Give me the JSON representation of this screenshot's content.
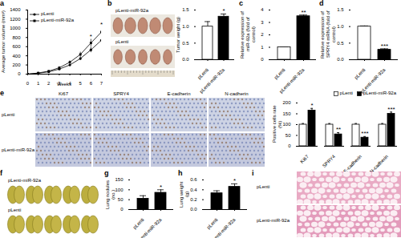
{
  "chart_data": [
    {
      "title": "a",
      "type": "line",
      "x_label": "Weeks",
      "y_label": "Average tumor volume (mm³)",
      "x": [
        0,
        1,
        2,
        3,
        4,
        5,
        6,
        7
      ],
      "xlim": [
        0,
        7
      ],
      "xticks": [
        0,
        1,
        2,
        3,
        4,
        5,
        6,
        7
      ],
      "ylim": [
        0,
        1400
      ],
      "yticks": [
        0,
        200,
        400,
        600,
        800,
        1000,
        1200,
        1400
      ],
      "legend": "top-left",
      "series": [
        {
          "name": "pLenti",
          "color": "#000000",
          "marker": "circle",
          "values": [
            0,
            20,
            50,
            110,
            200,
            340,
            530,
            740
          ],
          "errors": [
            0,
            5,
            10,
            15,
            25,
            40,
            60,
            80
          ]
        },
        {
          "name": "pLenti-miR-92a",
          "color": "#000000",
          "marker": "square",
          "values": [
            0,
            25,
            65,
            140,
            260,
            430,
            680,
            920
          ],
          "errors": [
            0,
            5,
            12,
            20,
            30,
            50,
            80,
            110
          ]
        }
      ],
      "annotations": [
        {
          "x": 6,
          "text": "*"
        },
        {
          "x": 7,
          "text": "*"
        }
      ]
    },
    {
      "type": "bar",
      "y_label": "Tumor weight (g)",
      "categories": [
        "pLenti",
        "pLenti-miR-92a"
      ],
      "values": [
        1.0,
        1.3
      ],
      "errors": [
        0.15,
        0.08
      ],
      "colors": [
        "#ffffff",
        "#000000"
      ],
      "ylim": [
        0,
        1.5
      ],
      "yticks": [
        {
          "value": 0,
          "label": "0.0"
        },
        0.5,
        {
          "value": 1,
          "label": "1.0"
        },
        1.5
      ],
      "annotations": [
        {
          "category": "pLenti-miR-92a",
          "text": "*"
        }
      ]
    },
    {
      "title": "c",
      "type": "bar",
      "y_label": "Relative expression of miR-92a (fold of control)",
      "categories": [
        "pLenti",
        "pLenti-miR-92a"
      ],
      "values": [
        1.0,
        3.5
      ],
      "errors": [
        0.03,
        0.1
      ],
      "colors": [
        "#ffffff",
        "#000000"
      ],
      "ylim": [
        0,
        4
      ],
      "yticks": [
        0,
        1,
        2,
        3,
        4
      ],
      "annotations": [
        {
          "category": "pLenti-miR-92a",
          "text": "**"
        }
      ]
    },
    {
      "title": "d",
      "type": "bar",
      "y_label": "Relative expression of SPRY4 mRNA (fold of control)",
      "categories": [
        "pLenti",
        "pLenti-miR-92a"
      ],
      "values": [
        1.0,
        0.3
      ],
      "errors": [
        0.02,
        0.03
      ],
      "colors": [
        "#ffffff",
        "#000000"
      ],
      "ylim": [
        0,
        1.5
      ],
      "yticks": [
        {
          "value": 0,
          "label": "0.0"
        },
        0.5,
        {
          "value": 1,
          "label": "1.0"
        },
        1.5
      ],
      "annotations": [
        {
          "category": "pLenti-miR-92a",
          "text": "***"
        }
      ]
    },
    {
      "type": "bar",
      "y_label": "Positive cells rate (%)",
      "categories": [
        "Ki67",
        "SPRY4",
        "E-cadherin",
        "N-cadherin"
      ],
      "legend": "top-right",
      "series": [
        {
          "name": "pLenti",
          "color": "#ffffff",
          "values": [
            100,
            100,
            100,
            100
          ],
          "errors": [
            5,
            5,
            5,
            5
          ]
        },
        {
          "name": "pLenti-miR-92a",
          "color": "#000000",
          "values": [
            165,
            55,
            40,
            150
          ],
          "errors": [
            10,
            8,
            5,
            8
          ]
        }
      ],
      "ylim": [
        0,
        200
      ],
      "yticks": [
        0,
        50,
        100,
        150,
        200
      ],
      "annotations": [
        {
          "category": "Ki67",
          "series": "pLenti-miR-92a",
          "text": "*"
        },
        {
          "category": "SPRY4",
          "series": "pLenti-miR-92a",
          "text": "**"
        },
        {
          "category": "E-cadherin",
          "series": "pLenti-miR-92a",
          "text": "***"
        },
        {
          "category": "N-cadherin",
          "series": "pLenti-miR-92a",
          "text": "***"
        }
      ]
    },
    {
      "title": "g",
      "type": "bar",
      "y_label": "Lung nodules (no.)",
      "categories": [
        "pLenti",
        "pLenti-miR-92a"
      ],
      "values": [
        55,
        85
      ],
      "errors": [
        15,
        15
      ],
      "colors": [
        "#000000",
        "#000000"
      ],
      "ylim": [
        0,
        150
      ],
      "yticks": [
        0,
        50,
        100,
        150
      ],
      "annotations": [
        {
          "category": "pLenti-miR-92a",
          "text": "*"
        }
      ]
    },
    {
      "title": "h",
      "type": "bar",
      "y_label": "Lung weight (g)",
      "categories": [
        "pLenti",
        "pLenti-miR-92a"
      ],
      "values": [
        0.33,
        0.46
      ],
      "errors": [
        0.05,
        0.06
      ],
      "colors": [
        "#000000",
        "#000000"
      ],
      "ylim": [
        0,
        0.6
      ],
      "yticks": [
        {
          "value": 0,
          "label": "0.0"
        },
        0.2,
        0.4,
        0.6
      ],
      "annotations": [
        {
          "category": "pLenti-miR-92a",
          "text": "*"
        }
      ]
    }
  ],
  "image_panels": [
    {
      "title": "b",
      "labels": [
        "pLenti-miR-92a",
        "pLenti"
      ]
    },
    {
      "title": "e",
      "columns": [
        "Ki67",
        "SPRY4",
        "E-cadherin",
        "N-cadherin"
      ],
      "rows": [
        "pLenti",
        "pLenti-miR-92a"
      ]
    },
    {
      "title": "f",
      "labels": [
        "pLenti-miR-92a",
        "pLenti"
      ]
    },
    {
      "title": "i",
      "labels": [
        "pLenti",
        "pLenti-miR-92a"
      ]
    }
  ]
}
